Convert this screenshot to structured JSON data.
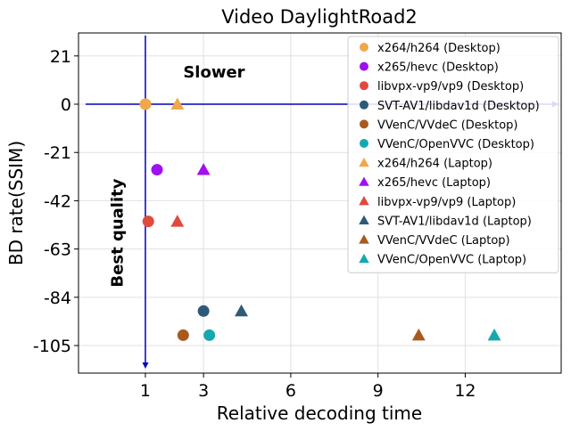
{
  "chart_data": {
    "type": "scatter",
    "title": "Video DaylightRoad2",
    "xlabel": "Relative decoding time",
    "ylabel": "BD rate(SSIM)",
    "xlim": [
      -1.3,
      15.3
    ],
    "ylim": [
      -117,
      31
    ],
    "xticks": [
      1,
      3,
      6,
      9,
      12
    ],
    "yticks": [
      21,
      0,
      -21,
      -42,
      -63,
      -84,
      -105
    ],
    "grid": true,
    "legend_position": "top-right",
    "reference_lines": {
      "vertical_x": 1,
      "horizontal_y": 0,
      "color": "#0000bb"
    },
    "annotations": [
      {
        "text": "Slower",
        "x": 2.3,
        "y": 14,
        "rotation": 0
      },
      {
        "text": "Best quality",
        "x": 0.0,
        "y": -56,
        "rotation": -90
      }
    ],
    "series": [
      {
        "name": "x264/h264 (Desktop)",
        "marker": "circle",
        "color": "#f0a84a",
        "points": [
          [
            1.0,
            0.0
          ]
        ]
      },
      {
        "name": "x265/hevc (Desktop)",
        "marker": "circle",
        "color": "#a010f0",
        "points": [
          [
            1.4,
            -28.5
          ]
        ]
      },
      {
        "name": "libvpx-vp9/vp9 (Desktop)",
        "marker": "circle",
        "color": "#e04a3c",
        "points": [
          [
            1.1,
            -51.0
          ]
        ]
      },
      {
        "name": "SVT-AV1/libdav1d (Desktop)",
        "marker": "circle",
        "color": "#2e5a7a",
        "points": [
          [
            3.0,
            -90.0
          ]
        ]
      },
      {
        "name": "VVenC/VVdeC (Desktop)",
        "marker": "circle",
        "color": "#a85a1e",
        "points": [
          [
            2.3,
            -100.5
          ]
        ]
      },
      {
        "name": "VVenC/OpenVVC (Desktop)",
        "marker": "circle",
        "color": "#16a8ae",
        "points": [
          [
            3.2,
            -100.5
          ]
        ]
      },
      {
        "name": "x264/h264 (Laptop)",
        "marker": "triangle",
        "color": "#f0a84a",
        "points": [
          [
            2.1,
            0.0
          ]
        ]
      },
      {
        "name": "x265/hevc (Laptop)",
        "marker": "triangle",
        "color": "#a010f0",
        "points": [
          [
            3.0,
            -28.5
          ]
        ]
      },
      {
        "name": "libvpx-vp9/vp9 (Laptop)",
        "marker": "triangle",
        "color": "#e04a3c",
        "points": [
          [
            2.1,
            -51.0
          ]
        ]
      },
      {
        "name": "SVT-AV1/libdav1d (Laptop)",
        "marker": "triangle",
        "color": "#2e5a7a",
        "points": [
          [
            4.3,
            -90.0
          ]
        ]
      },
      {
        "name": "VVenC/VVdeC (Laptop)",
        "marker": "triangle",
        "color": "#a85a1e",
        "points": [
          [
            10.4,
            -100.5
          ]
        ]
      },
      {
        "name": "VVenC/OpenVVC (Laptop)",
        "marker": "triangle",
        "color": "#16a8ae",
        "points": [
          [
            13.0,
            -100.5
          ]
        ]
      }
    ]
  }
}
